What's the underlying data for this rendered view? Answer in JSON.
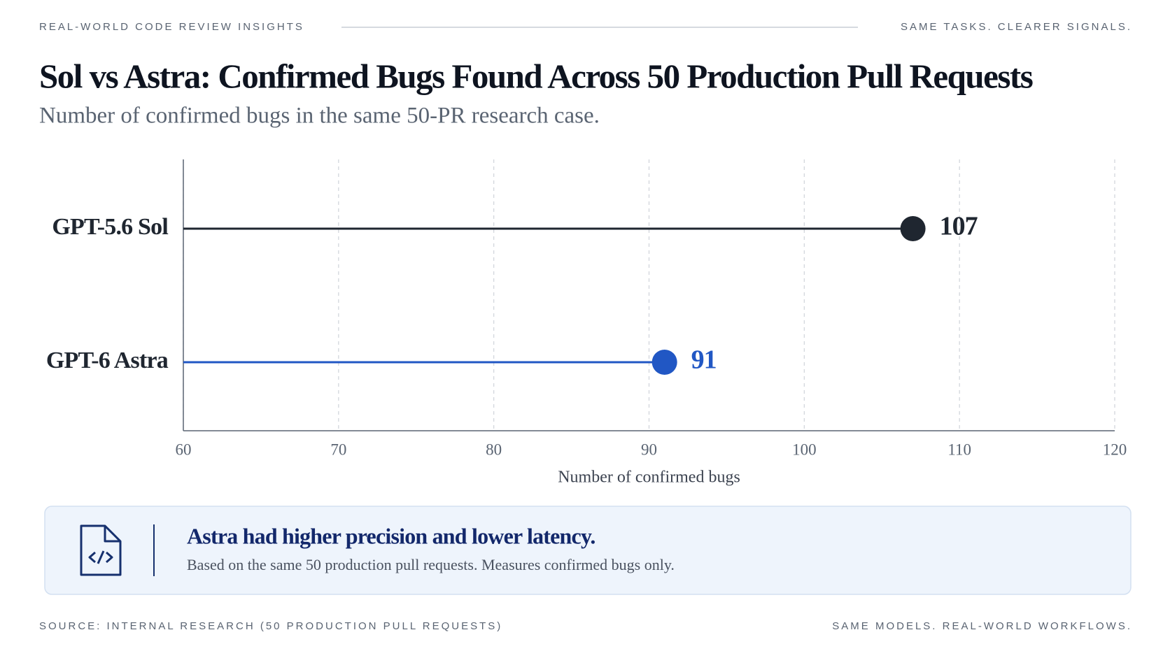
{
  "header": {
    "left": "REAL-WORLD CODE REVIEW INSIGHTS",
    "right": "SAME TASKS. CLEARER SIGNALS."
  },
  "chart_data": {
    "type": "lollipop",
    "title": "Sol vs Astra: Confirmed Bugs Found Across 50 Production Pull Requests",
    "subtitle": "Number of confirmed bugs in the same 50-PR research case.",
    "x_label": "Number of confirmed bugs",
    "categories": [
      "GPT-5.6 Sol",
      "GPT-6 Astra"
    ],
    "values": [
      107,
      91
    ],
    "colors": [
      "#1f2630",
      "#2157c4"
    ],
    "xlim": [
      60,
      120
    ],
    "xticks": [
      60,
      70,
      80,
      90,
      100,
      110,
      120
    ],
    "grid": true
  },
  "callout": {
    "title": "Astra had higher precision and lower latency.",
    "text": "Based on the same 50 production pull requests. Measures confirmed bugs only."
  },
  "footer": {
    "left": "SOURCE: INTERNAL RESEARCH (50 PRODUCTION PULL REQUESTS)",
    "right": "SAME MODELS. REAL-WORLD WORKFLOWS."
  }
}
